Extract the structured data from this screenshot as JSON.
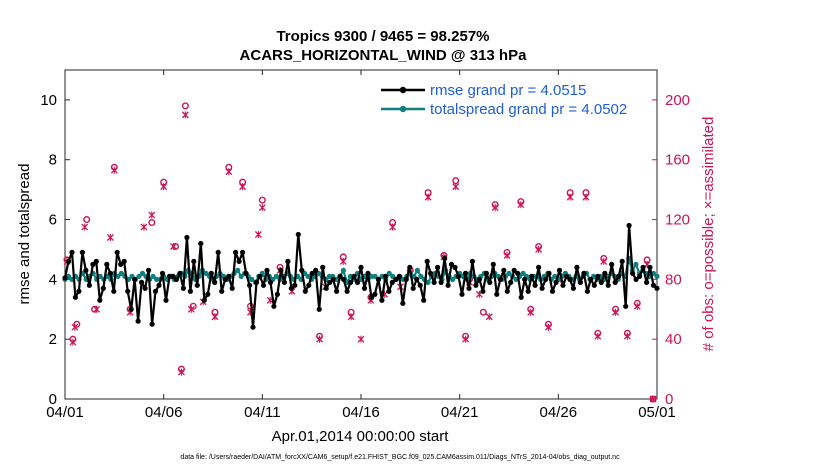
{
  "chart_data": {
    "type": "line",
    "title_line1": "Tropics 9300 / 9465 = 98.257%",
    "title_line2": "ACARS_HORIZONTAL_WIND @ 313 hPa",
    "xlabel": "Apr.01,2014 00:00:00 start",
    "ylabel_left": "rmse and totalspread",
    "ylabel_right": "# of obs: o=possible; ×=assimilated",
    "footer": "data file: /Users/raeder/DAI/ATM_forcXX/CAM6_setup/f.e21.FHIST_BGC.f09_025.CAM6assim.011/Diags_NTrS_2014-04/obs_diag_output.nc",
    "xlim": [
      0,
      30
    ],
    "ylim_left": [
      0,
      11
    ],
    "ylim_right": [
      0,
      220
    ],
    "x_ticks": [
      0,
      5,
      10,
      15,
      20,
      25,
      30
    ],
    "x_tick_labels": [
      "04/01",
      "04/06",
      "04/11",
      "04/16",
      "04/21",
      "04/26",
      "05/01"
    ],
    "y_left_ticks": [
      0,
      2,
      4,
      6,
      8,
      10
    ],
    "y_left_tick_labels": [
      "0",
      "2",
      "4",
      "6",
      "8",
      "10"
    ],
    "y_right_ticks": [
      0,
      40,
      80,
      120,
      160,
      200
    ],
    "y_right_tick_labels": [
      "0",
      "40",
      "80",
      "120",
      "160",
      "200"
    ],
    "colors": {
      "rmse": "#000000",
      "spread": "#0f7f80",
      "obs": "#cc1559",
      "legend_text": "#1f5fd6"
    },
    "series": [
      {
        "name": "rmse grand pr = 4.0515",
        "key": "rmse",
        "values": [
          4.05,
          4.6,
          4.9,
          3.4,
          3.6,
          4.9,
          4.3,
          3.8,
          4.5,
          4.6,
          3.3,
          3.7,
          4.5,
          4.2,
          3.6,
          4.9,
          4.5,
          4.6,
          3.6,
          3.0,
          4.0,
          2.6,
          3.9,
          3.7,
          4.3,
          2.5,
          3.6,
          3.8,
          4.2,
          3.3,
          4.1,
          4.1,
          4.0,
          4.2,
          3.7,
          5.4,
          3.6,
          4.6,
          3.8,
          5.2,
          3.3,
          3.5,
          4.2,
          3.9,
          4.9,
          3.6,
          4.0,
          4.1,
          3.7,
          4.9,
          4.6,
          4.9,
          4.2,
          3.8,
          2.4,
          3.9,
          4.1,
          3.8,
          4.3,
          3.9,
          3.1,
          3.5,
          4.3,
          3.9,
          4.6,
          3.7,
          3.8,
          5.5,
          4.3,
          3.6,
          3.8,
          4.2,
          4.3,
          3.0,
          4.4,
          3.7,
          3.9,
          4.0,
          3.6,
          4.1,
          4.0,
          3.6,
          3.9,
          4.1,
          3.9,
          4.4,
          3.7,
          4.2,
          3.4,
          3.5,
          4.0,
          3.3,
          4.1,
          3.6,
          3.9,
          4.0,
          4.1,
          3.2,
          4.0,
          4.4,
          3.7,
          4.0,
          3.8,
          3.3,
          4.6,
          4.2,
          3.9,
          4.4,
          3.9,
          4.7,
          3.8,
          4.5,
          4.4,
          4.1,
          3.5,
          4.2,
          3.7,
          4.6,
          3.8,
          4.0,
          3.6,
          4.2,
          3.9,
          4.5,
          3.5,
          4.0,
          4.3,
          3.6,
          3.9,
          4.3,
          4.2,
          3.4,
          4.0,
          3.6,
          4.1,
          3.8,
          4.4,
          3.7,
          4.0,
          4.2,
          3.6,
          3.9,
          4.3,
          3.8,
          4.1,
          4.0,
          3.7,
          4.4,
          3.9,
          4.2,
          3.6,
          4.0,
          3.8,
          4.1,
          3.9,
          4.2,
          3.8,
          4.5,
          3.9,
          4.1,
          4.6,
          3.1,
          5.8,
          4.2,
          4.0,
          4.1,
          4.4,
          3.9,
          4.4,
          3.8,
          3.7
        ]
      },
      {
        "name": "totalspread grand pr = 4.0502",
        "key": "spread",
        "values": [
          4.0,
          4.1,
          4.0,
          4.1,
          4.0,
          4.2,
          4.0,
          4.1,
          4.2,
          4.0,
          4.1,
          4.0,
          4.1,
          4.0,
          4.2,
          4.1,
          4.2,
          4.1,
          4.0,
          4.1,
          4.0,
          4.1,
          4.2,
          4.1,
          4.0,
          4.1,
          4.0,
          4.0,
          4.1,
          4.0,
          4.1,
          4.0,
          4.1,
          4.2,
          4.1,
          4.3,
          4.2,
          4.0,
          4.1,
          4.3,
          4.2,
          4.1,
          4.0,
          4.1,
          4.2,
          4.1,
          4.0,
          4.1,
          4.2,
          4.3,
          4.1,
          4.2,
          4.1,
          4.0,
          3.9,
          4.1,
          4.2,
          4.0,
          4.1,
          4.0,
          4.1,
          4.0,
          4.1,
          4.2,
          4.1,
          4.0,
          4.1,
          4.0,
          4.2,
          4.1,
          4.0,
          4.1,
          4.2,
          4.1,
          4.0,
          4.1,
          4.1,
          4.0,
          4.1,
          4.3,
          3.9,
          4.1,
          4.0,
          4.2,
          4.0,
          4.1,
          4.0,
          4.1,
          4.1,
          4.0,
          4.1,
          4.0,
          4.2,
          4.1,
          4.0,
          4.1,
          4.0,
          4.1,
          4.2,
          4.1,
          4.3,
          4.1,
          4.0,
          3.9,
          4.1,
          4.2,
          4.1,
          4.0,
          4.3,
          4.1,
          4.0,
          4.1,
          4.2,
          4.1,
          4.0,
          4.2,
          4.1,
          4.0,
          4.1,
          4.2,
          4.0,
          4.1,
          4.2,
          4.1,
          4.0,
          4.1,
          4.2,
          4.1,
          4.0,
          4.1,
          4.2,
          4.1,
          4.0,
          4.1,
          4.1,
          4.0,
          4.1,
          4.2,
          4.0,
          4.1,
          4.0,
          4.1,
          4.2,
          4.1,
          4.0,
          4.1,
          4.0,
          4.1,
          4.2,
          4.0,
          4.1,
          4.0,
          4.1,
          4.0,
          4.1,
          4.2,
          4.1,
          4.0,
          4.2,
          4.1,
          4.7,
          4.3,
          4.5,
          4.2,
          4.3,
          4.2,
          4.1,
          4.2,
          4.1
        ]
      }
    ],
    "obs_possible": [
      [
        0.1,
        93
      ],
      [
        0.4,
        40
      ],
      [
        0.6,
        50
      ],
      [
        1.1,
        120
      ],
      [
        1.5,
        60
      ],
      [
        2.5,
        155
      ],
      [
        3.3,
        60
      ],
      [
        4.4,
        118
      ],
      [
        5.0,
        145
      ],
      [
        5.6,
        102
      ],
      [
        5.9,
        20
      ],
      [
        6.1,
        196
      ],
      [
        6.5,
        62
      ],
      [
        7.6,
        58
      ],
      [
        8.3,
        155
      ],
      [
        9.0,
        145
      ],
      [
        9.4,
        62
      ],
      [
        10.0,
        133
      ],
      [
        10.9,
        88
      ],
      [
        12.9,
        42
      ],
      [
        14.1,
        95
      ],
      [
        14.5,
        58
      ],
      [
        15.5,
        68
      ],
      [
        16.6,
        118
      ],
      [
        17.5,
        86
      ],
      [
        18.4,
        138
      ],
      [
        19.2,
        96
      ],
      [
        19.8,
        146
      ],
      [
        20.3,
        42
      ],
      [
        20.5,
        80
      ],
      [
        21.8,
        130
      ],
      [
        21.2,
        58
      ],
      [
        22.4,
        98
      ],
      [
        23.1,
        132
      ],
      [
        23.6,
        60
      ],
      [
        24.0,
        102
      ],
      [
        24.5,
        50
      ],
      [
        25.1,
        82
      ],
      [
        25.6,
        138
      ],
      [
        26.4,
        138
      ],
      [
        27.0,
        44
      ],
      [
        27.3,
        94
      ],
      [
        27.9,
        60
      ],
      [
        28.5,
        44
      ],
      [
        29.0,
        64
      ],
      [
        29.5,
        93
      ],
      [
        29.8,
        0
      ]
    ],
    "obs_assimilated": [
      [
        0.1,
        92
      ],
      [
        0.4,
        38
      ],
      [
        0.5,
        48
      ],
      [
        1.0,
        115
      ],
      [
        1.6,
        60
      ],
      [
        2.3,
        108
      ],
      [
        2.5,
        153
      ],
      [
        3.3,
        58
      ],
      [
        4.0,
        115
      ],
      [
        4.4,
        123
      ],
      [
        5.0,
        142
      ],
      [
        5.5,
        102
      ],
      [
        5.9,
        18
      ],
      [
        6.1,
        190
      ],
      [
        6.4,
        60
      ],
      [
        7.0,
        65
      ],
      [
        7.6,
        55
      ],
      [
        8.3,
        152
      ],
      [
        9.0,
        142
      ],
      [
        9.4,
        58
      ],
      [
        9.8,
        110
      ],
      [
        10.0,
        128
      ],
      [
        10.4,
        66
      ],
      [
        10.9,
        86
      ],
      [
        11.5,
        72
      ],
      [
        12.9,
        40
      ],
      [
        13.2,
        75
      ],
      [
        14.1,
        92
      ],
      [
        14.5,
        55
      ],
      [
        15.0,
        40
      ],
      [
        15.5,
        66
      ],
      [
        16.2,
        70
      ],
      [
        16.6,
        115
      ],
      [
        17.0,
        75
      ],
      [
        17.5,
        84
      ],
      [
        18.4,
        135
      ],
      [
        19.2,
        95
      ],
      [
        19.8,
        142
      ],
      [
        20.3,
        40
      ],
      [
        20.5,
        78
      ],
      [
        21.0,
        70
      ],
      [
        21.5,
        55
      ],
      [
        21.8,
        128
      ],
      [
        22.4,
        96
      ],
      [
        23.1,
        130
      ],
      [
        23.6,
        58
      ],
      [
        24.0,
        100
      ],
      [
        24.5,
        48
      ],
      [
        25.1,
        80
      ],
      [
        25.6,
        135
      ],
      [
        26.4,
        135
      ],
      [
        27.0,
        42
      ],
      [
        27.3,
        92
      ],
      [
        27.9,
        58
      ],
      [
        28.5,
        42
      ],
      [
        29.0,
        62
      ],
      [
        29.5,
        90
      ],
      [
        29.8,
        0
      ]
    ]
  }
}
